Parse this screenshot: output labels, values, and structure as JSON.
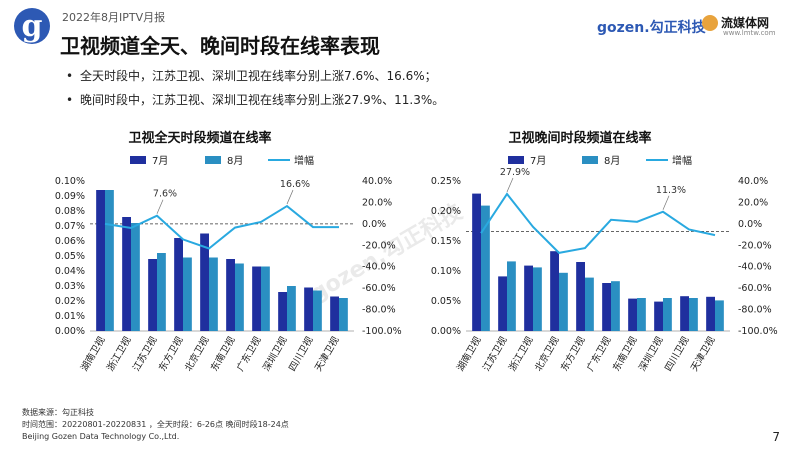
{
  "header": {
    "report_tag": "2022年8月IPTV月报",
    "title": "卫视频道全天、晚间时段在线率表现",
    "brand_gozen": "gozen.勾正科技",
    "brand_lmtw": "流媒体网",
    "brand_lmtw_url": "www.lmtw.com"
  },
  "bullets": [
    "全天时段中，江苏卫视、深圳卫视在线率分别上涨7.6%、16.6%；",
    "晚间时段中，江苏卫视、深圳卫视在线率分别上涨27.9%、11.3%。"
  ],
  "footer": {
    "source": "数据来源：勾正科技",
    "range": "时间范围：20220801-20220831 ，全天时段：6-26点  晚间时段18-24点",
    "company": "Beijing Gozen Data Technology Co.,Ltd."
  },
  "page_number": "7",
  "watermark": "gozen.勾正科技",
  "colors": {
    "jul": "#1f2f9e",
    "aug": "#2a8fc2",
    "growth": "#29a9e0"
  },
  "chart_data": [
    {
      "type": "bar",
      "title": "卫视全天时段频道在线率",
      "legend": [
        "7月",
        "8月",
        "增幅"
      ],
      "categories": [
        "湖南卫视",
        "浙江卫视",
        "江苏卫视",
        "东方卫视",
        "北京卫视",
        "东南卫视",
        "广东卫视",
        "深圳卫视",
        "四川卫视",
        "天津卫视"
      ],
      "series": [
        {
          "name": "7月",
          "values": [
            0.094,
            0.076,
            0.048,
            0.062,
            0.065,
            0.048,
            0.043,
            0.026,
            0.029,
            0.023
          ]
        },
        {
          "name": "8月",
          "values": [
            0.094,
            0.072,
            0.052,
            0.049,
            0.049,
            0.045,
            0.043,
            0.03,
            0.027,
            0.022
          ]
        },
        {
          "name": "增幅",
          "axis": "right",
          "values": [
            0.0,
            -3.8,
            7.6,
            -14.5,
            -23.0,
            -3.5,
            1.8,
            16.6,
            -3.0,
            -3.0
          ]
        }
      ],
      "y_ticks": [
        "0.00%",
        "0.01%",
        "0.02%",
        "0.03%",
        "0.04%",
        "0.05%",
        "0.06%",
        "0.07%",
        "0.08%",
        "0.09%",
        "0.10%"
      ],
      "y2_ticks": [
        "-100.0%",
        "-80.0%",
        "-60.0%",
        "-40.0%",
        "-20.0%",
        "0.0%",
        "20.0%",
        "40.0%"
      ],
      "ylim": [
        0,
        0.1
      ],
      "y2lim": [
        -100,
        40
      ],
      "annotations": [
        {
          "category": "江苏卫视",
          "text": "7.6%"
        },
        {
          "category": "深圳卫视",
          "text": "16.6%"
        }
      ]
    },
    {
      "type": "bar",
      "title": "卫视晚间时段频道在线率",
      "legend": [
        "7月",
        "8月",
        "增幅"
      ],
      "categories": [
        "湖南卫视",
        "江苏卫视",
        "浙江卫视",
        "北京卫视",
        "东方卫视",
        "广东卫视",
        "东南卫视",
        "深圳卫视",
        "四川卫视",
        "天津卫视"
      ],
      "series": [
        {
          "name": "7月",
          "values": [
            0.229,
            0.091,
            0.109,
            0.133,
            0.115,
            0.08,
            0.054,
            0.049,
            0.058,
            0.057
          ]
        },
        {
          "name": "8月",
          "values": [
            0.209,
            0.116,
            0.106,
            0.097,
            0.089,
            0.083,
            0.055,
            0.055,
            0.055,
            0.051
          ]
        },
        {
          "name": "增幅",
          "axis": "right",
          "values": [
            -8.7,
            27.9,
            -2.8,
            -27.1,
            -22.6,
            3.8,
            1.9,
            11.3,
            -5.2,
            -10.5
          ]
        }
      ],
      "y_ticks": [
        "0.00%",
        "0.05%",
        "0.10%",
        "0.15%",
        "0.20%",
        "0.25%"
      ],
      "y2_ticks": [
        "-100.0%",
        "-80.0%",
        "-60.0%",
        "-40.0%",
        "-20.0%",
        "0.0%",
        "20.0%",
        "40.0%"
      ],
      "ylim": [
        0,
        0.25
      ],
      "y2lim": [
        -100,
        40
      ],
      "reference_line": 0.166,
      "annotations": [
        {
          "category": "江苏卫视",
          "text": "27.9%"
        },
        {
          "category": "深圳卫视",
          "text": "11.3%"
        }
      ]
    }
  ]
}
